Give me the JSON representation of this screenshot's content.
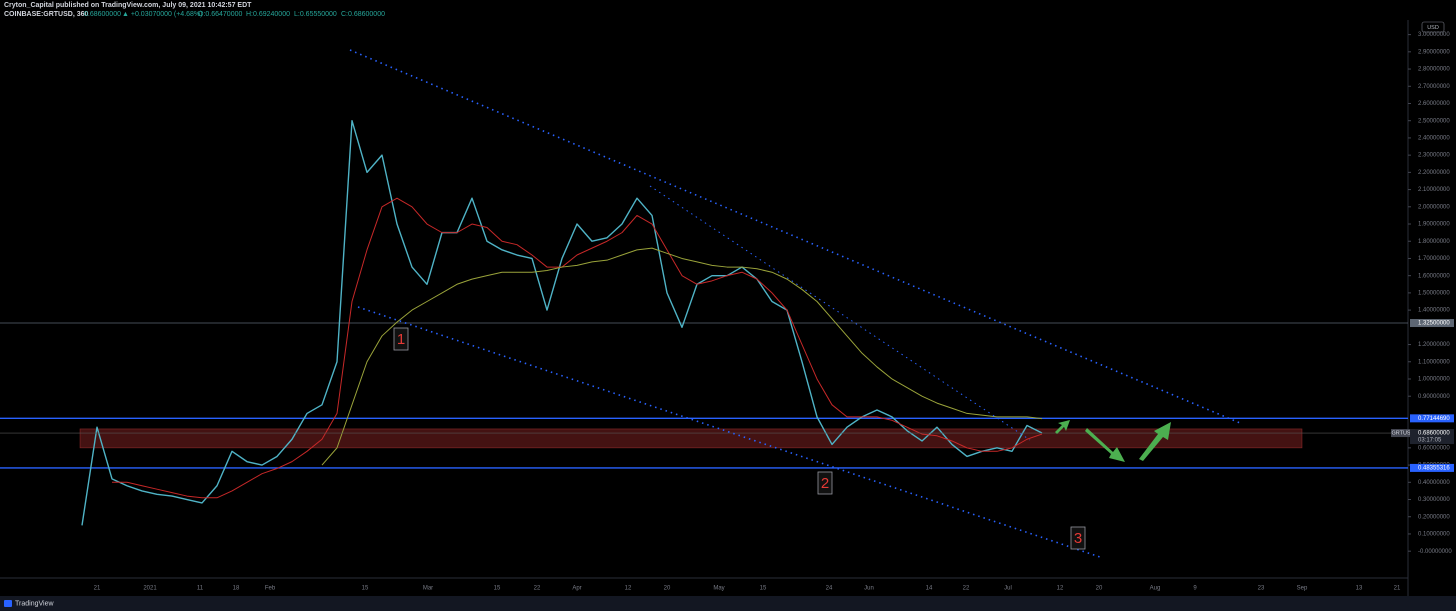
{
  "header": {
    "line1": "Cryton_Capital published on TradingView.com, July 09, 2021 10:42:57 EDT",
    "symbol": "COINBASE:GRTUSD, 360",
    "price": "0.68600000",
    "change": "▲ +0.03070000 (+4.68%)",
    "open": "O:0.66470000",
    "high": "H:0.69240000",
    "low": "L:0.65550000",
    "close": "C:0.68600000"
  },
  "footer": {
    "brand": "TradingView"
  },
  "chart_data": {
    "type": "line",
    "currency": "USD",
    "series": [
      {
        "color": "#4fb3c6",
        "width": 1.4,
        "values": [
          0.15,
          0.72,
          0.42,
          0.38,
          0.35,
          0.33,
          0.32,
          0.3,
          0.28,
          0.38,
          0.58,
          0.52,
          0.5,
          0.55,
          0.65,
          0.8,
          0.85,
          1.1,
          2.5,
          2.2,
          2.3,
          1.9,
          1.65,
          1.55,
          1.85,
          1.85,
          2.05,
          1.8,
          1.75,
          1.72,
          1.7,
          1.4,
          1.7,
          1.9,
          1.8,
          1.82,
          1.9,
          2.05,
          1.95,
          1.5,
          1.3,
          1.55,
          1.6,
          1.6,
          1.65,
          1.58,
          1.45,
          1.4,
          1.1,
          0.78,
          0.62,
          0.72,
          0.78,
          0.82,
          0.78,
          0.7,
          0.64,
          0.72,
          0.62,
          0.55,
          0.58,
          0.6,
          0.58,
          0.73,
          0.686
        ]
      },
      {
        "color": "#c62828",
        "width": 1,
        "values": [
          null,
          null,
          0.4,
          0.4,
          0.38,
          0.36,
          0.34,
          0.32,
          0.31,
          0.31,
          0.35,
          0.4,
          0.45,
          0.48,
          0.52,
          0.58,
          0.65,
          0.8,
          1.45,
          1.75,
          2.0,
          2.05,
          2.0,
          1.9,
          1.85,
          1.85,
          1.9,
          1.88,
          1.8,
          1.78,
          1.72,
          1.65,
          1.65,
          1.72,
          1.76,
          1.8,
          1.85,
          1.95,
          1.9,
          1.75,
          1.6,
          1.55,
          1.57,
          1.6,
          1.62,
          1.58,
          1.5,
          1.4,
          1.2,
          1.0,
          0.85,
          0.78,
          0.78,
          0.78,
          0.76,
          0.72,
          0.68,
          0.67,
          0.64,
          0.6,
          0.58,
          0.58,
          0.6,
          0.65,
          0.68
        ]
      },
      {
        "color": "#9aa33a",
        "width": 1,
        "values": [
          null,
          null,
          null,
          null,
          null,
          null,
          null,
          null,
          null,
          null,
          null,
          null,
          null,
          null,
          null,
          null,
          0.5,
          0.6,
          0.85,
          1.1,
          1.25,
          1.33,
          1.4,
          1.45,
          1.5,
          1.55,
          1.58,
          1.6,
          1.62,
          1.62,
          1.62,
          1.63,
          1.65,
          1.66,
          1.68,
          1.69,
          1.72,
          1.75,
          1.76,
          1.73,
          1.7,
          1.68,
          1.66,
          1.65,
          1.65,
          1.64,
          1.62,
          1.58,
          1.52,
          1.45,
          1.35,
          1.25,
          1.15,
          1.07,
          1.0,
          0.95,
          0.9,
          0.86,
          0.83,
          0.8,
          0.79,
          0.78,
          0.78,
          0.78,
          0.77
        ]
      }
    ],
    "x_tick_labels": [
      "21",
      "2021",
      "11",
      "18",
      "Feb",
      "15",
      "Mar",
      "15",
      "22",
      "Apr",
      "12",
      "20",
      "May",
      "15",
      "24",
      "Jun",
      "14",
      "22",
      "Jul",
      "12",
      "20",
      "Aug",
      "9",
      "23",
      "Sep",
      "13",
      "21"
    ],
    "ylim": [
      -0.15,
      3.05
    ],
    "yticks": [
      {
        "value": 3.0,
        "label": "3.00000000"
      },
      {
        "value": 2.9,
        "label": "2.90000000"
      },
      {
        "value": 2.8,
        "label": "2.80000000"
      },
      {
        "value": 2.7,
        "label": "2.70000000"
      },
      {
        "value": 2.6,
        "label": "2.60000000"
      },
      {
        "value": 2.5,
        "label": "2.50000000"
      },
      {
        "value": 2.4,
        "label": "2.40000000"
      },
      {
        "value": 2.3,
        "label": "2.30000000"
      },
      {
        "value": 2.2,
        "label": "2.20000000"
      },
      {
        "value": 2.1,
        "label": "2.10000000"
      },
      {
        "value": 2.0,
        "label": "2.00000000"
      },
      {
        "value": 1.9,
        "label": "1.90000000"
      },
      {
        "value": 1.8,
        "label": "1.80000000"
      },
      {
        "value": 1.7,
        "label": "1.70000000"
      },
      {
        "value": 1.6,
        "label": "1.60000000"
      },
      {
        "value": 1.5,
        "label": "1.50000000"
      },
      {
        "value": 1.4,
        "label": "1.40000000"
      },
      {
        "value": 1.2,
        "label": "1.20000000"
      },
      {
        "value": 1.1,
        "label": "1.10000000"
      },
      {
        "value": 1.0,
        "label": "1.00000000"
      },
      {
        "value": 0.9,
        "label": "0.90000000"
      },
      {
        "value": 0.6,
        "label": "0.60000000"
      },
      {
        "value": 0.5,
        "label": "0.50000000"
      },
      {
        "value": 0.4,
        "label": "0.40000000"
      },
      {
        "value": 0.3,
        "label": "0.30000000"
      },
      {
        "value": 0.2,
        "label": "0.20000000"
      },
      {
        "value": 0.1,
        "label": "0.10000000"
      },
      {
        "value": 0,
        "label": "-0.00000000"
      }
    ],
    "levels": [
      {
        "value": 1.325,
        "label": "1.32500000",
        "color": "#5d6673"
      },
      {
        "value": 0.7714469,
        "label": "0.77144690",
        "color": "#2962ff"
      },
      {
        "value": 0.48355316,
        "label": "0.48355316",
        "color": "#2962ff"
      }
    ],
    "last_price": {
      "name": "GRTUSD",
      "value": 0.686,
      "label": "0.68600000",
      "countdown": "03:17:05"
    },
    "zone": {
      "from": 0.6,
      "to": 0.71,
      "color": "rgba(150,40,40,0.45)"
    },
    "annotations": [
      "1",
      "2",
      "3"
    ]
  }
}
